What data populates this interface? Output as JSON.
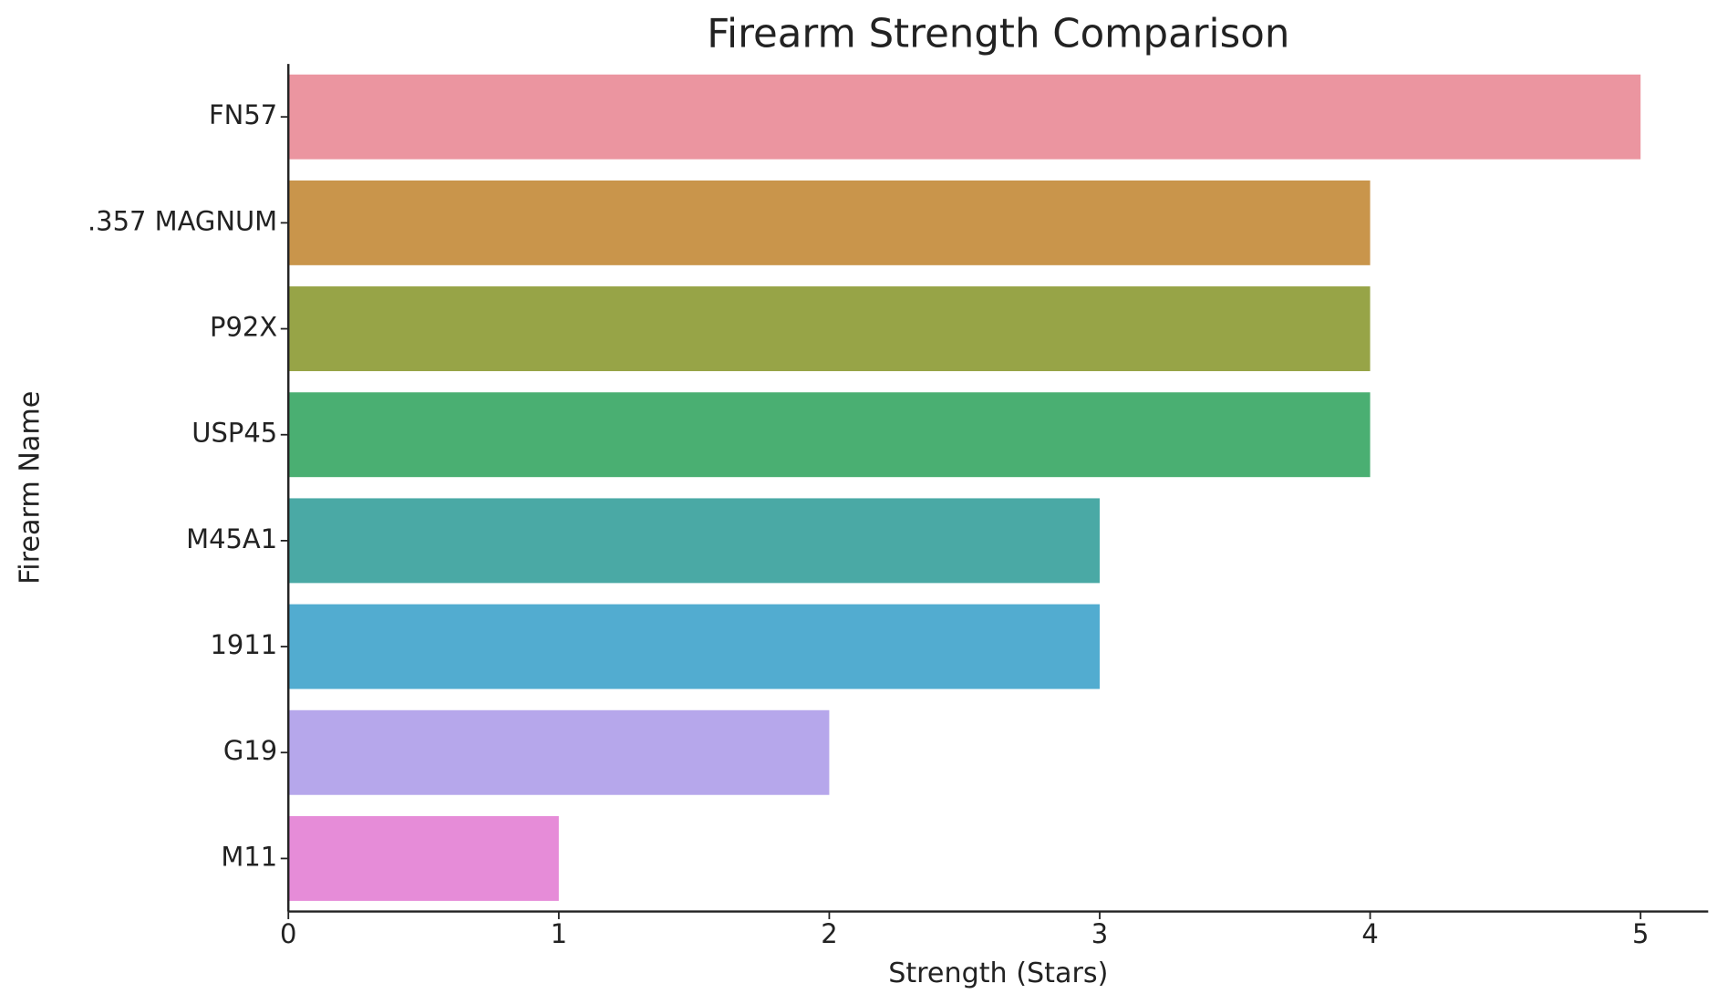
{
  "chart_data": {
    "type": "barh",
    "title": "Firearm Strength Comparison",
    "x_label": "Strength (Stars)",
    "y_label": "Firearm Name",
    "categories": [
      "FN57",
      ".357 MAGNUM",
      "P92X",
      "USP45",
      "M45A1",
      "1911",
      "G19",
      "M11"
    ],
    "values": [
      5,
      4,
      4,
      4,
      3,
      3,
      2,
      1
    ],
    "colors": [
      "#eb95a0",
      "#c9954b",
      "#97a447",
      "#4aaf72",
      "#4aa9a5",
      "#52acd0",
      "#b6a7eb",
      "#e68cd8"
    ],
    "xlim": [
      0,
      5.25
    ],
    "xticks": [
      0,
      1,
      2,
      3,
      4,
      5
    ],
    "grid": false
  }
}
